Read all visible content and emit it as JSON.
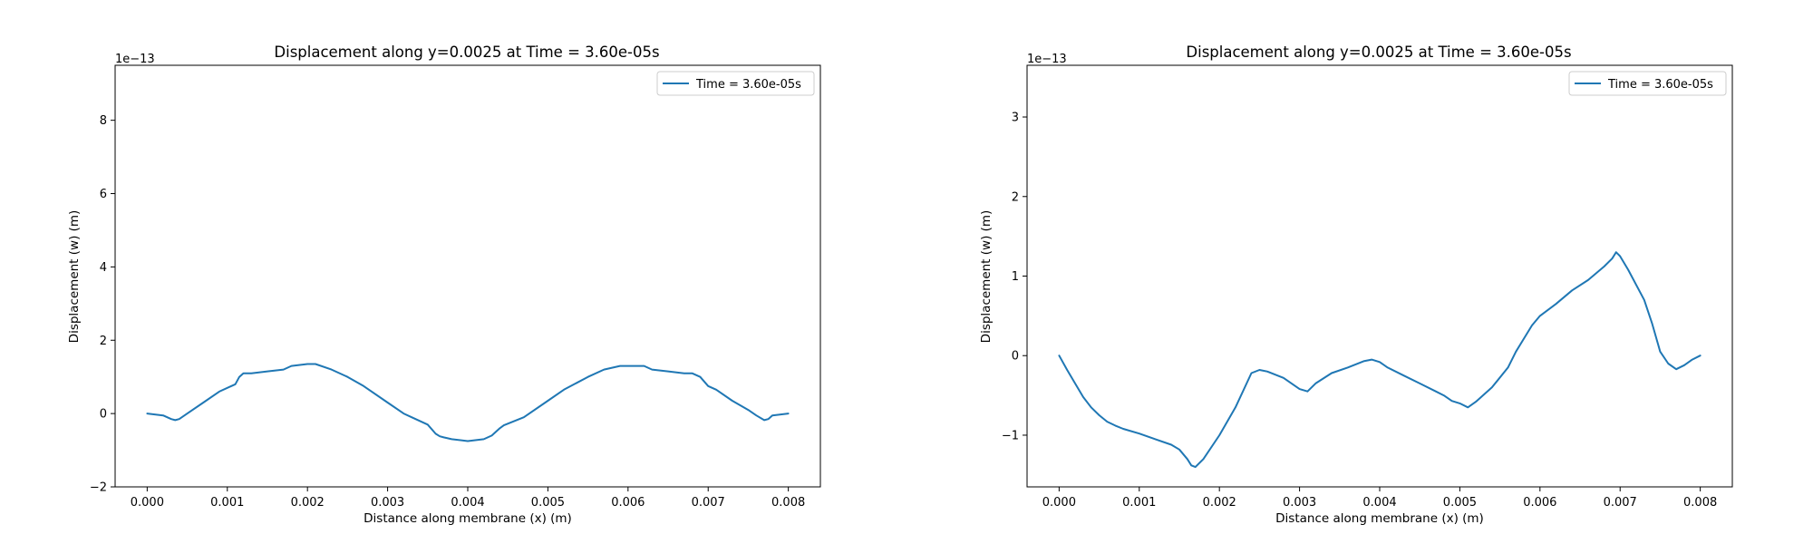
{
  "chart_data": [
    {
      "type": "line",
      "title": "Displacement along y=0.0025 at Time = 3.60e-05s",
      "xlabel": "Distance along membrane (x) (m)",
      "ylabel": "Displacement (w) (m)",
      "y_scale_label": "1e−13",
      "xlim": [
        -0.0004,
        0.0084
      ],
      "ylim": [
        -2,
        9.5
      ],
      "xticks": [
        "0.000",
        "0.001",
        "0.002",
        "0.003",
        "0.004",
        "0.005",
        "0.006",
        "0.007",
        "0.008"
      ],
      "xtick_values": [
        0,
        0.001,
        0.002,
        0.003,
        0.004,
        0.005,
        0.006,
        0.007,
        0.008
      ],
      "yticks": [
        "−2",
        "0",
        "2",
        "4",
        "6",
        "8"
      ],
      "ytick_values": [
        -2,
        0,
        2,
        4,
        6,
        8
      ],
      "grid": false,
      "legend_position": "top-right",
      "line_color": "#1f77b4",
      "series": [
        {
          "name": "Time = 3.60e-05s",
          "x": [
            0,
            0.0002,
            0.0003,
            0.00035,
            0.0004,
            0.0005,
            0.0007,
            0.0009,
            0.0011,
            0.00115,
            0.0012,
            0.0013,
            0.0015,
            0.0017,
            0.0018,
            0.002,
            0.0021,
            0.0023,
            0.0025,
            0.0027,
            0.003,
            0.0032,
            0.0033,
            0.0035,
            0.0036,
            0.00365,
            0.0037,
            0.0038,
            0.004,
            0.0042,
            0.0043,
            0.0044,
            0.00445,
            0.0047,
            0.005,
            0.0052,
            0.0055,
            0.0057,
            0.0059,
            0.0062,
            0.0063,
            0.0065,
            0.0067,
            0.0068,
            0.0069,
            0.007,
            0.0071,
            0.0073,
            0.0075,
            0.0076,
            0.0077,
            0.00775,
            0.0078,
            0.008
          ],
          "values": [
            0,
            -0.05,
            -0.15,
            -0.18,
            -0.15,
            0,
            0.3,
            0.6,
            0.8,
            1.0,
            1.1,
            1.1,
            1.15,
            1.2,
            1.3,
            1.35,
            1.35,
            1.2,
            1.0,
            0.75,
            0.3,
            0,
            -0.1,
            -0.3,
            -0.55,
            -0.62,
            -0.65,
            -0.7,
            -0.75,
            -0.7,
            -0.6,
            -0.4,
            -0.32,
            -0.1,
            0.35,
            0.65,
            1.0,
            1.2,
            1.3,
            1.3,
            1.2,
            1.15,
            1.1,
            1.1,
            1.0,
            0.75,
            0.65,
            0.35,
            0.1,
            -0.05,
            -0.18,
            -0.15,
            -0.05,
            0
          ]
        }
      ]
    },
    {
      "type": "line",
      "title": "Displacement along y=0.0025 at Time = 3.60e-05s",
      "xlabel": "Distance along membrane (x) (m)",
      "ylabel": "Displacement (w) (m)",
      "y_scale_label": "1e−13",
      "xlim": [
        -0.0004,
        0.0084
      ],
      "ylim": [
        -1.65,
        3.65
      ],
      "xticks": [
        "0.000",
        "0.001",
        "0.002",
        "0.003",
        "0.004",
        "0.005",
        "0.006",
        "0.007",
        "0.008"
      ],
      "xtick_values": [
        0,
        0.001,
        0.002,
        0.003,
        0.004,
        0.005,
        0.006,
        0.007,
        0.008
      ],
      "yticks": [
        "−1",
        "0",
        "1",
        "2",
        "3"
      ],
      "ytick_values": [
        -1,
        0,
        1,
        2,
        3
      ],
      "grid": false,
      "legend_position": "top-right",
      "line_color": "#1f77b4",
      "series": [
        {
          "name": "Time = 3.60e-05s",
          "x": [
            0,
            0.0001,
            0.0002,
            0.0003,
            0.0004,
            0.0005,
            0.0006,
            0.0007,
            0.0008,
            0.001,
            0.0012,
            0.0014,
            0.0015,
            0.0016,
            0.00165,
            0.0017,
            0.0018,
            0.002,
            0.0022,
            0.0024,
            0.0025,
            0.0026,
            0.0028,
            0.003,
            0.0031,
            0.0032,
            0.0034,
            0.0036,
            0.0038,
            0.0039,
            0.004,
            0.0041,
            0.0043,
            0.0045,
            0.0047,
            0.0048,
            0.0049,
            0.005,
            0.0051,
            0.0052,
            0.0054,
            0.0056,
            0.0057,
            0.0059,
            0.006,
            0.0062,
            0.0064,
            0.0066,
            0.0068,
            0.0069,
            0.00695,
            0.007,
            0.0071,
            0.0073,
            0.0074,
            0.0075,
            0.0076,
            0.0077,
            0.0078,
            0.0079,
            0.008
          ],
          "values": [
            0,
            -0.18,
            -0.35,
            -0.52,
            -0.65,
            -0.75,
            -0.83,
            -0.88,
            -0.92,
            -0.98,
            -1.05,
            -1.12,
            -1.18,
            -1.3,
            -1.38,
            -1.4,
            -1.3,
            -1.0,
            -0.65,
            -0.22,
            -0.18,
            -0.2,
            -0.28,
            -0.42,
            -0.45,
            -0.35,
            -0.22,
            -0.15,
            -0.07,
            -0.05,
            -0.08,
            -0.15,
            -0.25,
            -0.35,
            -0.45,
            -0.5,
            -0.57,
            -0.6,
            -0.65,
            -0.58,
            -0.4,
            -0.15,
            0.05,
            0.38,
            0.5,
            0.65,
            0.82,
            0.95,
            1.12,
            1.22,
            1.3,
            1.25,
            1.08,
            0.7,
            0.4,
            0.05,
            -0.1,
            -0.17,
            -0.12,
            -0.05,
            0
          ]
        }
      ]
    }
  ]
}
